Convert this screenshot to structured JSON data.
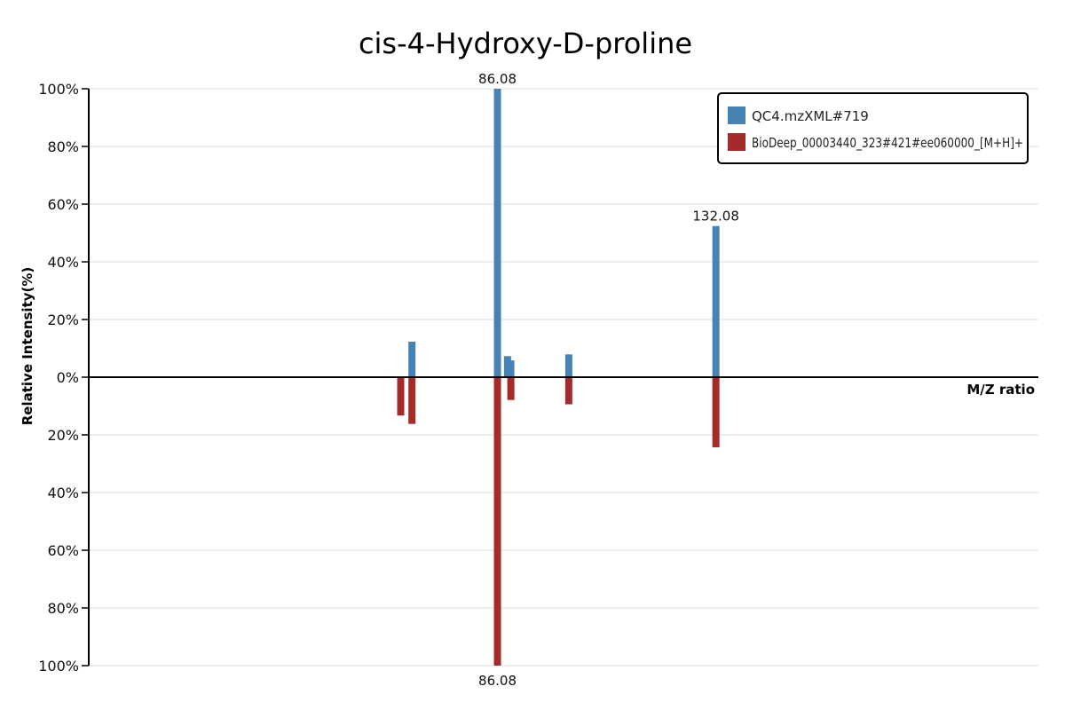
{
  "chart_data": {
    "type": "bar",
    "title": "cis-4-Hydroxy-D-proline",
    "xlabel": "M/Z ratio",
    "ylabel": "Relative Intensity(%)",
    "y_tick_labels_top": [
      "100%",
      "80%",
      "60%",
      "40%",
      "20%",
      "0%"
    ],
    "y_tick_labels_bottom": [
      "20%",
      "40%",
      "60%",
      "80%",
      "100%"
    ],
    "ylim": [
      -100,
      100
    ],
    "xlim": [
      0,
      200
    ],
    "grid": true,
    "legend_position": "top-right",
    "colors": {
      "top": "#4682b4",
      "bottom": "#a52a2a"
    },
    "series": [
      {
        "name": "QC4.mzXML#719",
        "direction": "up",
        "peaks": [
          {
            "mz": 68.07,
            "intensity": 12.3
          },
          {
            "mz": 86.08,
            "intensity": 100.0,
            "label": "86.08"
          },
          {
            "mz": 88.2,
            "intensity": 7.3
          },
          {
            "mz": 88.9,
            "intensity": 5.8
          },
          {
            "mz": 101.1,
            "intensity": 7.9
          },
          {
            "mz": 132.08,
            "intensity": 52.4,
            "label": "132.08"
          }
        ]
      },
      {
        "name": "BioDeep_00003440_323#421#ee060000_[M+H]+",
        "direction": "down",
        "peaks": [
          {
            "mz": 65.7,
            "intensity": 13.3
          },
          {
            "mz": 68.07,
            "intensity": 16.2
          },
          {
            "mz": 86.08,
            "intensity": 100.0,
            "label": "86.08"
          },
          {
            "mz": 88.9,
            "intensity": 7.9
          },
          {
            "mz": 101.1,
            "intensity": 9.4
          },
          {
            "mz": 132.08,
            "intensity": 24.3
          }
        ]
      }
    ]
  }
}
